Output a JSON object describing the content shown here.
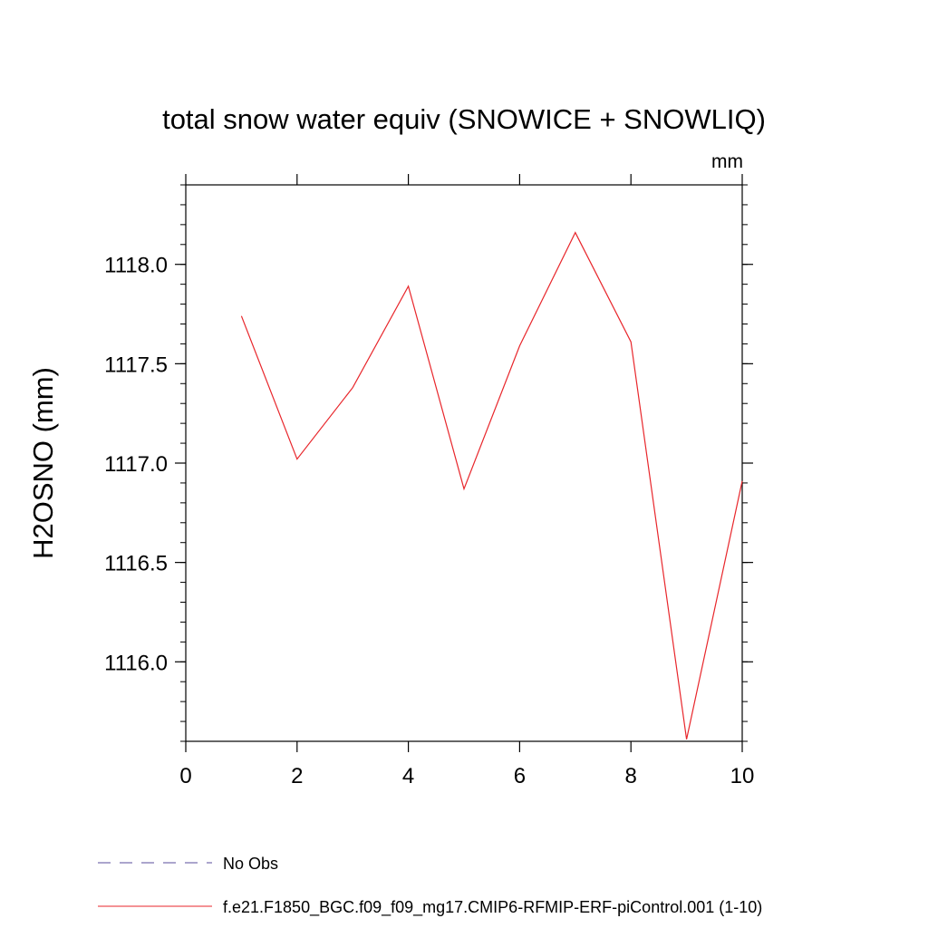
{
  "chart_data": {
    "type": "line",
    "title": "total snow water equiv (SNOWICE + SNOWLIQ)",
    "units": "mm",
    "ylabel": "H2OSNO  (mm)",
    "xlabel": "",
    "xlim": [
      0,
      10
    ],
    "ylim": [
      1115.6,
      1118.4
    ],
    "xticks": [
      0,
      2,
      4,
      6,
      8,
      10
    ],
    "xtick_labels": [
      "0",
      "2",
      "4",
      "6",
      "8",
      "10"
    ],
    "yticks": [
      1116.0,
      1116.5,
      1117.0,
      1117.5,
      1118.0
    ],
    "ytick_labels": [
      "1116.0",
      "1116.5",
      "1117.0",
      "1117.5",
      "1118.0"
    ],
    "grid": false,
    "legend_position": "bottom",
    "series": [
      {
        "name": "f.e21.F1850_BGC.f09_f09_mg17.CMIP6-RFMIP-ERF-piControl.001 (1-10)",
        "color": "#e8262b",
        "style": "solid",
        "x": [
          1,
          2,
          3,
          4,
          5,
          6,
          7,
          8,
          9,
          10
        ],
        "y": [
          1117.74,
          1117.02,
          1117.38,
          1117.89,
          1116.87,
          1117.59,
          1118.16,
          1117.61,
          1115.61,
          1116.91
        ]
      }
    ],
    "legend": [
      {
        "label": "No Obs",
        "color": "#5a4b9b",
        "style": "dashed"
      },
      {
        "label": "f.e21.F1850_BGC.f09_f09_mg17.CMIP6-RFMIP-ERF-piControl.001 (1-10)",
        "color": "#e8262b",
        "style": "solid"
      }
    ]
  }
}
